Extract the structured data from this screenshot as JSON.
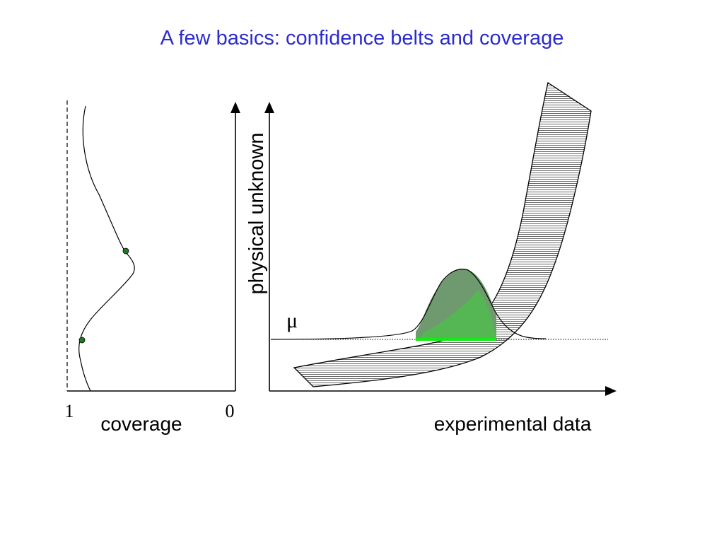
{
  "title": "A few basics: confidence belts and coverage",
  "coverage_panel": {
    "xlabel": "coverage",
    "tick_left": "1",
    "tick_right": "0"
  },
  "belt_panel": {
    "ylabel": "physical unknown",
    "xlabel": "experimental data",
    "mu_label": "μ"
  },
  "colors": {
    "title": "#2b2bd0",
    "gaussian_fill": "#6f9a6f",
    "acceptance_fill": "#3ecf3e",
    "belt_hatch": "#666666",
    "point": "#1f7a1f"
  }
}
